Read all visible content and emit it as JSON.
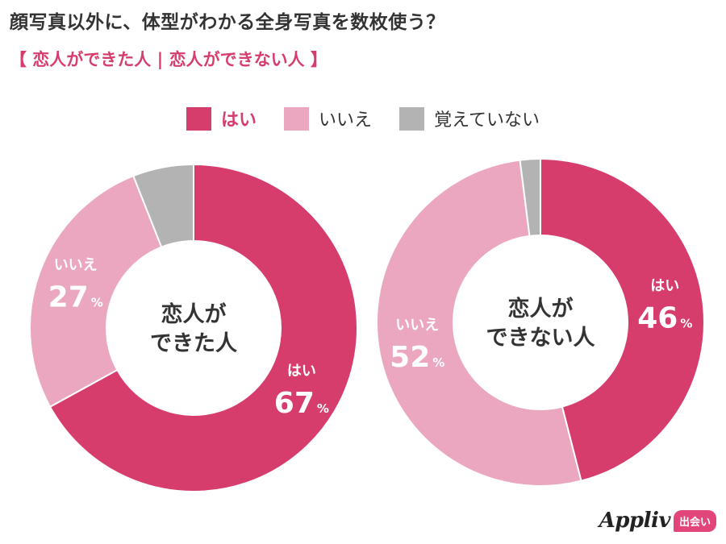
{
  "header": {
    "title": "顔写真以外に、体型がわかる全身写真を数枚使う？",
    "subtitle": "【 恋人ができた人 | 恋人ができない人 】"
  },
  "legend": [
    {
      "label": "はい",
      "color": "#d63c6c"
    },
    {
      "label": "いいえ",
      "color": "#eca7c0"
    },
    {
      "label": "覚えていない",
      "color": "#b3b3b3"
    }
  ],
  "chart_data": [
    {
      "type": "pie",
      "center_label": [
        "恋人が",
        "できた人"
      ],
      "categories": [
        "はい",
        "いいえ",
        "覚えていない"
      ],
      "values": [
        67,
        27,
        6
      ],
      "display_values": [
        "67",
        "27",
        ""
      ],
      "colors": [
        "#d63c6c",
        "#eca7c0",
        "#b3b3b3"
      ],
      "unit": "%"
    },
    {
      "type": "pie",
      "center_label": [
        "恋人が",
        "できない人"
      ],
      "categories": [
        "はい",
        "いいえ",
        "覚えていない"
      ],
      "values": [
        46,
        52,
        2
      ],
      "display_values": [
        "46",
        "52",
        ""
      ],
      "colors": [
        "#d63c6c",
        "#eca7c0",
        "#b3b3b3"
      ],
      "unit": "%"
    }
  ],
  "brand": {
    "name": "Appliv",
    "badge": "出会い"
  }
}
